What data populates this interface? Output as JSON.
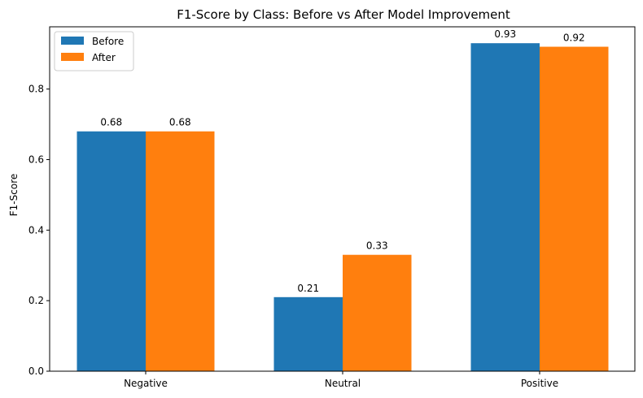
{
  "chart_data": {
    "type": "bar",
    "title": "F1-Score by Class: Before vs After Model Improvement",
    "xlabel": "",
    "ylabel": "F1-Score",
    "categories": [
      "Negative",
      "Neutral",
      "Positive"
    ],
    "series": [
      {
        "name": "Before",
        "values": [
          0.68,
          0.21,
          0.93
        ],
        "color": "#1f77b4"
      },
      {
        "name": "After",
        "values": [
          0.68,
          0.33,
          0.92
        ],
        "color": "#ff7f0e"
      }
    ],
    "ylim": [
      0,
      0.9765
    ],
    "yticks": [
      "0.0",
      "0.2",
      "0.4",
      "0.6",
      "0.8"
    ],
    "data_labels": [
      [
        "0.68",
        "0.21",
        "0.93"
      ],
      [
        "0.68",
        "0.33",
        "0.92"
      ]
    ],
    "legend_position": "top-left",
    "grid": false
  }
}
